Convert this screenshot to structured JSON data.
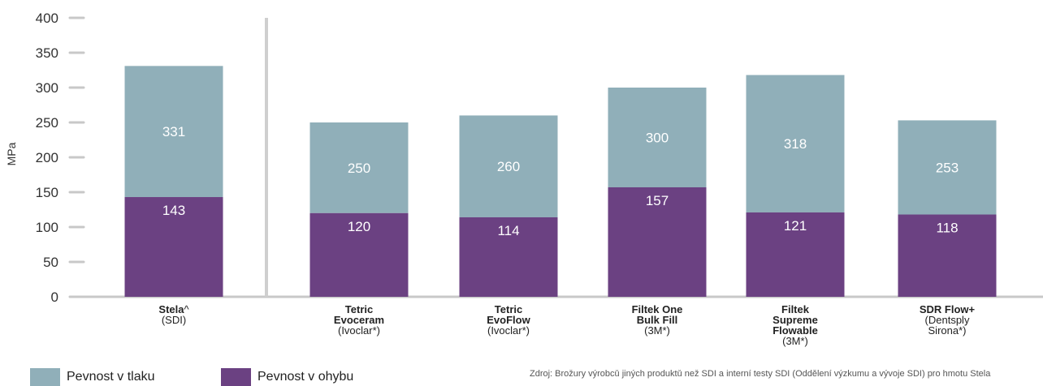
{
  "chart_data": {
    "type": "bar",
    "stacked": true,
    "ylabel": "MPa",
    "ylim": [
      0,
      400
    ],
    "yticks": [
      0,
      50,
      100,
      150,
      200,
      250,
      300,
      350,
      400
    ],
    "grid": false,
    "categories": [
      {
        "name": "Stela",
        "name_suffix": "^",
        "lines": [],
        "maker": "(SDI)"
      },
      {
        "name": "",
        "name_suffix": "",
        "lines": [
          "Tetric",
          "Evoceram"
        ],
        "maker": "(Ivoclar*)"
      },
      {
        "name": "",
        "name_suffix": "",
        "lines": [
          "Tetric",
          "EvoFlow"
        ],
        "maker": "(Ivoclar*)"
      },
      {
        "name": "",
        "name_suffix": "",
        "lines": [
          "Filtek One",
          "Bulk Fill"
        ],
        "maker": "(3M*)"
      },
      {
        "name": "",
        "name_suffix": "",
        "lines": [
          "Filtek",
          "Supreme",
          "Flowable"
        ],
        "maker": "(3M*)"
      },
      {
        "name": "",
        "name_suffix": "",
        "lines": [
          "SDR Flow+"
        ],
        "maker_lines": [
          "(Dentsply",
          "Sirona*)"
        ]
      }
    ],
    "series": [
      {
        "name": "Pevnost v ohybu",
        "color": "#6b4182",
        "values": [
          143,
          120,
          114,
          157,
          121,
          118
        ]
      },
      {
        "name": "Pevnost v tlaku",
        "color": "#90afb9",
        "totals": [
          331,
          250,
          260,
          300,
          318,
          253
        ]
      }
    ],
    "separator_after_index": 0,
    "legend_position": "bottom-left"
  },
  "legend": {
    "item1": {
      "label": "Pevnost v tlaku",
      "color": "#90afb9"
    },
    "item2": {
      "label": "Pevnost v ohybu",
      "color": "#6b4182"
    }
  },
  "source_note": "Zdroj: Brožury výrobců jiných produktů než SDI a interní testy SDI (Oddělení výzkumu a vývoje SDI) pro hmotu Stela"
}
